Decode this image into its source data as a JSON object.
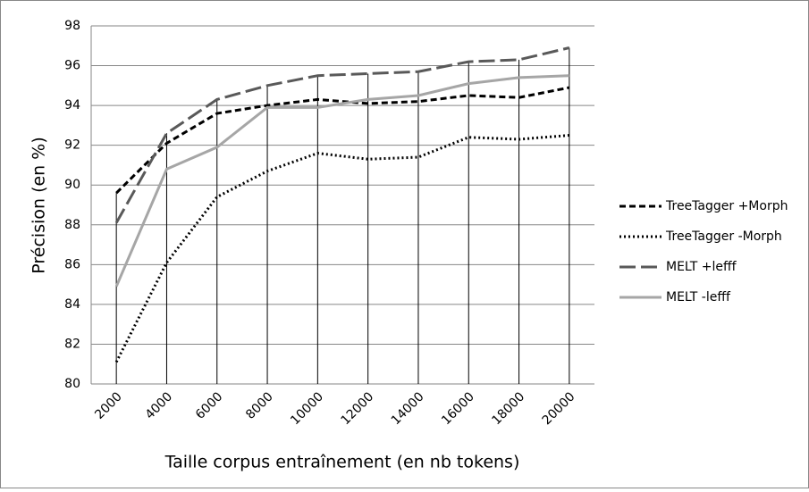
{
  "chart_data": {
    "type": "line",
    "x_label": "Taille corpus entraînement (en nb tokens)",
    "y_label": "Précision (en %)",
    "categories": [
      "2000",
      "4000",
      "6000",
      "8000",
      "10000",
      "12000",
      "14000",
      "16000",
      "18000",
      "20000"
    ],
    "series": [
      {
        "name": "TreeTagger +Morph",
        "color": "#000000",
        "style": "dashed",
        "values": [
          89.6,
          92.1,
          93.6,
          94.0,
          94.3,
          94.1,
          94.2,
          94.5,
          94.4,
          94.9
        ]
      },
      {
        "name": "TreeTagger -Morph",
        "color": "#000000",
        "style": "dotted",
        "values": [
          81.1,
          86.1,
          89.4,
          90.7,
          91.6,
          91.3,
          91.4,
          92.4,
          92.3,
          92.5
        ]
      },
      {
        "name": "MELT +lefff",
        "color": "#595959",
        "style": "longdash",
        "values": [
          88.1,
          92.6,
          94.3,
          95.0,
          95.5,
          95.6,
          95.7,
          96.2,
          96.3,
          96.9
        ]
      },
      {
        "name": "MELT -lefff",
        "color": "#a6a6a6",
        "style": "solid",
        "values": [
          84.9,
          90.8,
          91.9,
          93.9,
          93.9,
          94.3,
          94.5,
          95.1,
          95.4,
          95.5
        ]
      }
    ],
    "ylim": [
      80,
      98
    ],
    "yticks": [
      80,
      82,
      84,
      86,
      88,
      90,
      92,
      94,
      96,
      98
    ],
    "grid": true,
    "drop_lines": true,
    "legend": "right"
  }
}
